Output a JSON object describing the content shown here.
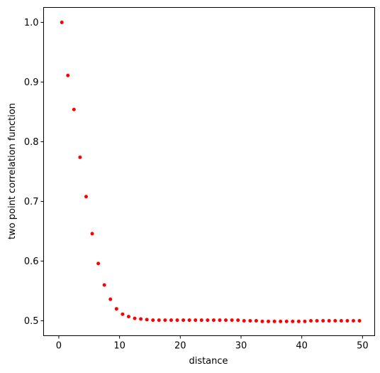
{
  "chart_data": {
    "type": "scatter",
    "title": "",
    "xlabel": "distance",
    "ylabel": "two point correlation function",
    "xlim": [
      -2.5,
      52.0
    ],
    "ylim": [
      0.475,
      1.025
    ],
    "xticks": [
      0,
      10,
      20,
      30,
      40,
      50
    ],
    "xtick_labels": [
      "0",
      "10",
      "20",
      "30",
      "40",
      "50"
    ],
    "yticks": [
      0.5,
      0.6,
      0.7,
      0.8,
      0.9,
      1.0
    ],
    "ytick_labels": [
      "0.5",
      "0.6",
      "0.7",
      "0.8",
      "0.9",
      "1.0"
    ],
    "grid": false,
    "legend": "none",
    "marker_color": "#ff0000",
    "series": [
      {
        "x": [
          0.5,
          1.5,
          2.5,
          3.5,
          4.5,
          5.5,
          6.5,
          7.5,
          8.5,
          9.5,
          10.5,
          11.5,
          12.5,
          13.5,
          14.5,
          15.5,
          16.5,
          17.5,
          18.5,
          19.5,
          20.5,
          21.5,
          22.5,
          23.5,
          24.5,
          25.5,
          26.5,
          27.5,
          28.5,
          29.5,
          30.5,
          31.5,
          32.5,
          33.5,
          34.5,
          35.5,
          36.5,
          37.5,
          38.5,
          39.5,
          40.5,
          41.5,
          42.5,
          43.5,
          44.5,
          45.5,
          46.5,
          47.5,
          48.5,
          49.5
        ],
        "y": [
          1.0,
          0.911,
          0.854,
          0.774,
          0.708,
          0.646,
          0.596,
          0.56,
          0.536,
          0.52,
          0.511,
          0.507,
          0.504,
          0.503,
          0.502,
          0.501,
          0.501,
          0.501,
          0.501,
          0.501,
          0.501,
          0.501,
          0.501,
          0.501,
          0.501,
          0.501,
          0.501,
          0.501,
          0.501,
          0.501,
          0.5,
          0.5,
          0.5,
          0.499,
          0.499,
          0.499,
          0.499,
          0.499,
          0.499,
          0.499,
          0.499,
          0.5,
          0.5,
          0.5,
          0.5,
          0.5,
          0.5,
          0.5,
          0.5,
          0.5
        ]
      }
    ]
  }
}
